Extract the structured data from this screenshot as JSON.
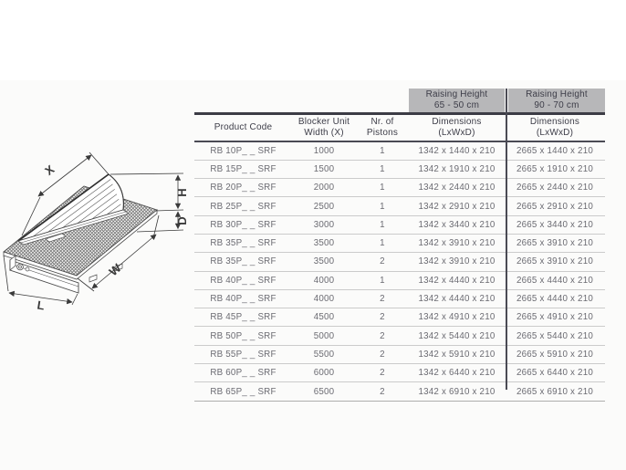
{
  "diagram": {
    "labels": {
      "x": "X",
      "h": "H",
      "d": "D",
      "w": "W",
      "l": "L"
    }
  },
  "table": {
    "raising_headers": [
      {
        "line1": "Raising Height",
        "line2": "65 - 50 cm"
      },
      {
        "line1": "Raising Height",
        "line2": "90 - 70 cm"
      }
    ],
    "columns": [
      {
        "line1": "Product Code",
        "line2": ""
      },
      {
        "line1": "Blocker Unit",
        "line2": "Width (X)"
      },
      {
        "line1": "Nr. of",
        "line2": "Pistons"
      },
      {
        "line1": "Dimensions",
        "line2": "(LxWxD)"
      },
      {
        "line1": "Dimensions",
        "line2": "(LxWxD)"
      }
    ],
    "rows": [
      {
        "code": "RB 10P_ _ SRF",
        "width": "1000",
        "pistons": "1",
        "dim_65_50": "1342 x 1440 x 210",
        "dim_90_70": "2665 x 1440 x 210"
      },
      {
        "code": "RB 15P_ _ SRF",
        "width": "1500",
        "pistons": "1",
        "dim_65_50": "1342 x 1910 x 210",
        "dim_90_70": "2665 x 1910 x 210"
      },
      {
        "code": "RB 20P_ _ SRF",
        "width": "2000",
        "pistons": "1",
        "dim_65_50": "1342 x 2440 x 210",
        "dim_90_70": "2665 x 2440 x 210"
      },
      {
        "code": "RB 25P_ _ SRF",
        "width": "2500",
        "pistons": "1",
        "dim_65_50": "1342 x 2910 x 210",
        "dim_90_70": "2665 x 2910 x 210"
      },
      {
        "code": "RB 30P_ _ SRF",
        "width": "3000",
        "pistons": "1",
        "dim_65_50": "1342 x 3440 x 210",
        "dim_90_70": "2665 x 3440 x 210"
      },
      {
        "code": "RB 35P_ _ SRF",
        "width": "3500",
        "pistons": "1",
        "dim_65_50": "1342 x 3910 x 210",
        "dim_90_70": "2665 x 3910 x 210"
      },
      {
        "code": "RB 35P_ _ SRF",
        "width": "3500",
        "pistons": "2",
        "dim_65_50": "1342 x 3910 x 210",
        "dim_90_70": "2665 x 3910 x 210"
      },
      {
        "code": "RB 40P_ _ SRF",
        "width": "4000",
        "pistons": "1",
        "dim_65_50": "1342 x 4440 x 210",
        "dim_90_70": "2665 x 4440 x 210"
      },
      {
        "code": "RB 40P_ _ SRF",
        "width": "4000",
        "pistons": "2",
        "dim_65_50": "1342 x 4440 x 210",
        "dim_90_70": "2665 x 4440 x 210"
      },
      {
        "code": "RB 45P_ _ SRF",
        "width": "4500",
        "pistons": "2",
        "dim_65_50": "1342 x 4910 x 210",
        "dim_90_70": "2665 x 4910 x 210"
      },
      {
        "code": "RB 50P_ _ SRF",
        "width": "5000",
        "pistons": "2",
        "dim_65_50": "1342 x 5440 x 210",
        "dim_90_70": "2665 x 5440 x 210"
      },
      {
        "code": "RB 55P_ _ SRF",
        "width": "5500",
        "pistons": "2",
        "dim_65_50": "1342 x 5910 x 210",
        "dim_90_70": "2665 x 5910 x 210"
      },
      {
        "code": "RB 60P_ _ SRF",
        "width": "6000",
        "pistons": "2",
        "dim_65_50": "1342 x 6440 x 210",
        "dim_90_70": "2665 x 6440 x 210"
      },
      {
        "code": "RB 65P_ _ SRF",
        "width": "6500",
        "pistons": "2",
        "dim_65_50": "1342 x 6910 x 210",
        "dim_90_70": "2665 x 6910 x 210"
      }
    ]
  },
  "colors": {
    "header_gray_bg": "#b7b7b9",
    "header_text": "#3d3d48",
    "data_text": "#6b6b72",
    "heavy_line": "#3c3c45",
    "divider": "#4a4a54",
    "row_line": "#cbcbcb",
    "bottom_line": "#adadad",
    "drawing_line": "#3a3a3a"
  }
}
